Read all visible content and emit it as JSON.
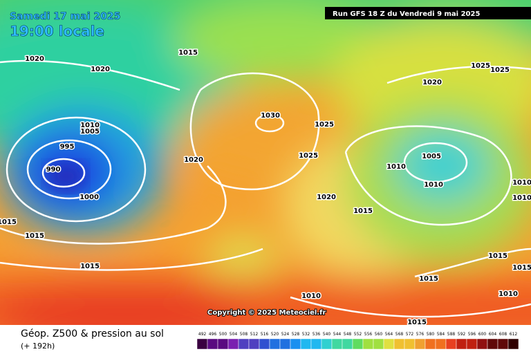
{
  "header": {
    "date": "Samedi 17 mai 2025",
    "time": "19:00 locale",
    "run": "Run GFS 18 Z du Vendredi 9 mai 2025"
  },
  "footer": {
    "title": "Géop. Z500 & pression au sol",
    "lead": "(+ 192h)",
    "copyright": "Copyright © 2025 Meteociel.fr"
  },
  "isobar_labels": [
    1020,
    1020,
    1015,
    1010,
    1005,
    995,
    990,
    1000,
    1015,
    1015,
    1015,
    1020,
    1030,
    1025,
    1025,
    1020,
    1015,
    1020,
    1025,
    1025,
    1005,
    1010,
    1010,
    1010,
    1010,
    1015,
    1015,
    1015,
    1010,
    1015,
    1010
  ],
  "scale": [
    492,
    496,
    500,
    504,
    508,
    512,
    516,
    520,
    524,
    528,
    532,
    536,
    540,
    544,
    548,
    552,
    556,
    560,
    564,
    568,
    572,
    576,
    580,
    584,
    588,
    592,
    596,
    600,
    604,
    608,
    612
  ]
}
